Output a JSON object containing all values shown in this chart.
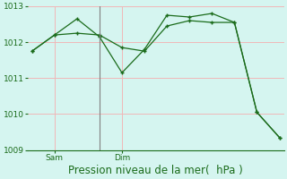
{
  "s1_x": [
    0,
    1,
    2,
    3,
    4,
    5,
    6,
    7,
    8,
    9,
    10,
    11
  ],
  "s1_y": [
    1011.75,
    1012.2,
    1012.65,
    1012.15,
    1011.15,
    1011.8,
    1012.75,
    1012.7,
    1012.8,
    1012.55,
    1010.05,
    1009.35
  ],
  "s2_x": [
    0,
    1,
    2,
    3,
    4,
    5,
    6,
    7,
    8,
    9,
    10,
    11
  ],
  "s2_y": [
    1011.75,
    1012.2,
    1012.25,
    1012.2,
    1011.85,
    1011.75,
    1012.45,
    1012.6,
    1012.55,
    1012.55,
    1010.05,
    1009.35
  ],
  "color": "#1a6b1a",
  "bg_color": "#d5f5f0",
  "grid_color": "#f0b8b8",
  "vline_x": 3,
  "vline_color": "#808080",
  "sam_tick": 1,
  "dim_tick": 4,
  "sam_label": "Sam",
  "dim_label": "Dim",
  "xlabel": "Pression niveau de la mer(  hPa )",
  "ylim_min": 1009.0,
  "ylim_max": 1013.0,
  "yticks": [
    1009,
    1010,
    1011,
    1012,
    1013
  ],
  "xlim_min": -0.2,
  "xlim_max": 11.2,
  "tick_fontsize": 6.5,
  "xlabel_fontsize": 8.5
}
